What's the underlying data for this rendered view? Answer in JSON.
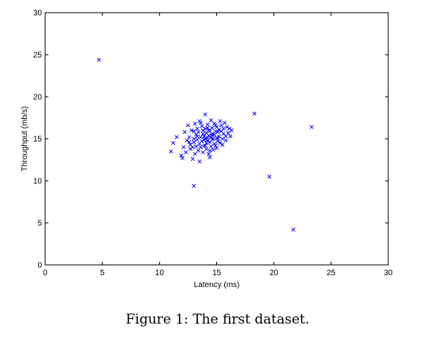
{
  "chart_data": {
    "type": "scatter",
    "title": "",
    "xlabel": "Latency (ms)",
    "ylabel": "Throughput (mb/s)",
    "xlim": [
      0,
      30
    ],
    "ylim": [
      0,
      30
    ],
    "xticks": [
      0,
      5,
      10,
      15,
      20,
      25,
      30
    ],
    "yticks": [
      0,
      5,
      10,
      15,
      20,
      25,
      30
    ],
    "grid": false,
    "marker": "x",
    "marker_color": "#0000ff",
    "outliers": [
      {
        "x": 4.7,
        "y": 24.4
      },
      {
        "x": 18.3,
        "y": 18.0
      },
      {
        "x": 23.3,
        "y": 16.4
      },
      {
        "x": 19.6,
        "y": 10.5
      },
      {
        "x": 21.7,
        "y": 4.2
      },
      {
        "x": 13.0,
        "y": 9.4
      }
    ],
    "cluster": [
      {
        "x": 11.0,
        "y": 13.5
      },
      {
        "x": 11.2,
        "y": 14.5
      },
      {
        "x": 11.5,
        "y": 15.2
      },
      {
        "x": 11.9,
        "y": 13.0
      },
      {
        "x": 12.0,
        "y": 12.7
      },
      {
        "x": 12.1,
        "y": 14.0
      },
      {
        "x": 12.2,
        "y": 15.8
      },
      {
        "x": 12.3,
        "y": 13.4
      },
      {
        "x": 12.4,
        "y": 14.8
      },
      {
        "x": 12.5,
        "y": 16.6
      },
      {
        "x": 12.6,
        "y": 15.2
      },
      {
        "x": 12.7,
        "y": 14.3
      },
      {
        "x": 12.7,
        "y": 13.8
      },
      {
        "x": 12.8,
        "y": 16.0
      },
      {
        "x": 12.9,
        "y": 12.6
      },
      {
        "x": 13.0,
        "y": 15.0
      },
      {
        "x": 13.0,
        "y": 14.6
      },
      {
        "x": 13.1,
        "y": 16.8
      },
      {
        "x": 13.1,
        "y": 13.2
      },
      {
        "x": 13.2,
        "y": 15.5
      },
      {
        "x": 13.2,
        "y": 14.1
      },
      {
        "x": 13.3,
        "y": 16.2
      },
      {
        "x": 13.3,
        "y": 14.9
      },
      {
        "x": 13.4,
        "y": 13.6
      },
      {
        "x": 13.4,
        "y": 15.8
      },
      {
        "x": 13.5,
        "y": 14.4
      },
      {
        "x": 13.5,
        "y": 17.1
      },
      {
        "x": 13.5,
        "y": 12.3
      },
      {
        "x": 13.6,
        "y": 15.2
      },
      {
        "x": 13.6,
        "y": 14.0
      },
      {
        "x": 13.7,
        "y": 16.5
      },
      {
        "x": 13.7,
        "y": 14.7
      },
      {
        "x": 13.8,
        "y": 15.6
      },
      {
        "x": 13.8,
        "y": 13.4
      },
      {
        "x": 13.8,
        "y": 16.0
      },
      {
        "x": 13.9,
        "y": 14.9
      },
      {
        "x": 13.9,
        "y": 15.3
      },
      {
        "x": 14.0,
        "y": 17.9
      },
      {
        "x": 14.0,
        "y": 14.2
      },
      {
        "x": 14.0,
        "y": 15.0
      },
      {
        "x": 14.0,
        "y": 16.2
      },
      {
        "x": 14.1,
        "y": 13.8
      },
      {
        "x": 14.1,
        "y": 15.7
      },
      {
        "x": 14.1,
        "y": 14.5
      },
      {
        "x": 14.2,
        "y": 15.1
      },
      {
        "x": 14.2,
        "y": 16.7
      },
      {
        "x": 14.2,
        "y": 14.8
      },
      {
        "x": 14.3,
        "y": 13.2
      },
      {
        "x": 14.3,
        "y": 15.4
      },
      {
        "x": 14.3,
        "y": 16.0
      },
      {
        "x": 14.4,
        "y": 14.6
      },
      {
        "x": 14.4,
        "y": 15.9
      },
      {
        "x": 14.4,
        "y": 12.8
      },
      {
        "x": 14.5,
        "y": 15.2
      },
      {
        "x": 14.5,
        "y": 14.1
      },
      {
        "x": 14.5,
        "y": 17.2
      },
      {
        "x": 14.6,
        "y": 15.6
      },
      {
        "x": 14.6,
        "y": 14.9
      },
      {
        "x": 14.6,
        "y": 16.3
      },
      {
        "x": 14.7,
        "y": 13.7
      },
      {
        "x": 14.7,
        "y": 15.0
      },
      {
        "x": 14.8,
        "y": 16.8
      },
      {
        "x": 14.8,
        "y": 14.4
      },
      {
        "x": 14.8,
        "y": 15.5
      },
      {
        "x": 14.9,
        "y": 15.9
      },
      {
        "x": 14.9,
        "y": 14.2
      },
      {
        "x": 15.0,
        "y": 16.4
      },
      {
        "x": 15.0,
        "y": 15.1
      },
      {
        "x": 15.0,
        "y": 13.9
      },
      {
        "x": 15.1,
        "y": 15.8
      },
      {
        "x": 15.1,
        "y": 14.7
      },
      {
        "x": 15.2,
        "y": 16.1
      },
      {
        "x": 15.2,
        "y": 15.3
      },
      {
        "x": 15.3,
        "y": 17.1
      },
      {
        "x": 15.3,
        "y": 14.5
      },
      {
        "x": 15.4,
        "y": 15.9
      },
      {
        "x": 15.4,
        "y": 16.6
      },
      {
        "x": 15.5,
        "y": 15.0
      },
      {
        "x": 15.5,
        "y": 14.3
      },
      {
        "x": 15.6,
        "y": 16.2
      },
      {
        "x": 15.6,
        "y": 15.6
      },
      {
        "x": 15.7,
        "y": 16.9
      },
      {
        "x": 15.8,
        "y": 15.3
      },
      {
        "x": 15.8,
        "y": 14.8
      },
      {
        "x": 15.9,
        "y": 16.4
      },
      {
        "x": 16.0,
        "y": 15.7
      },
      {
        "x": 16.1,
        "y": 16.2
      },
      {
        "x": 16.2,
        "y": 15.3
      },
      {
        "x": 16.3,
        "y": 16.0
      },
      {
        "x": 13.0,
        "y": 15.9
      },
      {
        "x": 12.6,
        "y": 14.6
      },
      {
        "x": 13.9,
        "y": 14.1
      },
      {
        "x": 14.2,
        "y": 16.3
      },
      {
        "x": 14.6,
        "y": 15.4
      },
      {
        "x": 13.6,
        "y": 16.9
      },
      {
        "x": 12.9,
        "y": 14.0
      },
      {
        "x": 15.1,
        "y": 15.0
      },
      {
        "x": 14.9,
        "y": 16.6
      },
      {
        "x": 13.3,
        "y": 15.3
      },
      {
        "x": 14.4,
        "y": 13.6
      }
    ]
  },
  "caption": "Figure 1: The first dataset."
}
